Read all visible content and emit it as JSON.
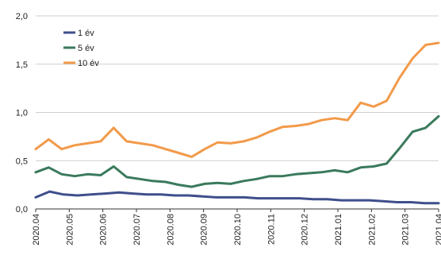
{
  "chart_data": {
    "type": "line",
    "title": "",
    "xlabel": "",
    "ylabel": "",
    "ylim": [
      0,
      2
    ],
    "yticks": [
      "0,0",
      "0,5",
      "1,0",
      "1,5",
      "2,0"
    ],
    "ytick_values": [
      0,
      0.5,
      1.0,
      1.5,
      2.0
    ],
    "grid": true,
    "legend": "top-left",
    "x_ticks": [
      "2020.04",
      "2020.05",
      "2020.06",
      "2020.07",
      "2020.08",
      "2020.09",
      "2020.10",
      "2020.11",
      "2020.12",
      "2021.01",
      "2021.02",
      "2021.03",
      "2021.04"
    ],
    "series": [
      {
        "name": "1 év",
        "color": "#3f4f8c",
        "values": [
          0.12,
          0.18,
          0.15,
          0.14,
          0.15,
          0.16,
          0.17,
          0.16,
          0.15,
          0.15,
          0.14,
          0.14,
          0.13,
          0.12,
          0.12,
          0.12,
          0.11,
          0.11,
          0.11,
          0.11,
          0.1,
          0.1,
          0.09,
          0.09,
          0.09,
          0.08,
          0.07,
          0.07,
          0.06,
          0.06
        ]
      },
      {
        "name": "5 év",
        "color": "#3a7a5c",
        "values": [
          0.38,
          0.43,
          0.36,
          0.34,
          0.36,
          0.35,
          0.44,
          0.33,
          0.31,
          0.29,
          0.28,
          0.25,
          0.23,
          0.26,
          0.27,
          0.26,
          0.29,
          0.31,
          0.34,
          0.34,
          0.36,
          0.37,
          0.38,
          0.4,
          0.38,
          0.43,
          0.44,
          0.47,
          0.63,
          0.8,
          0.84,
          0.96
        ]
      },
      {
        "name": "10 év",
        "color": "#f29a4a",
        "values": [
          0.62,
          0.72,
          0.62,
          0.66,
          0.68,
          0.7,
          0.84,
          0.7,
          0.68,
          0.66,
          0.62,
          0.58,
          0.54,
          0.62,
          0.69,
          0.68,
          0.7,
          0.74,
          0.8,
          0.85,
          0.86,
          0.88,
          0.92,
          0.94,
          0.92,
          1.1,
          1.06,
          1.12,
          1.36,
          1.56,
          1.7,
          1.72
        ]
      }
    ]
  }
}
